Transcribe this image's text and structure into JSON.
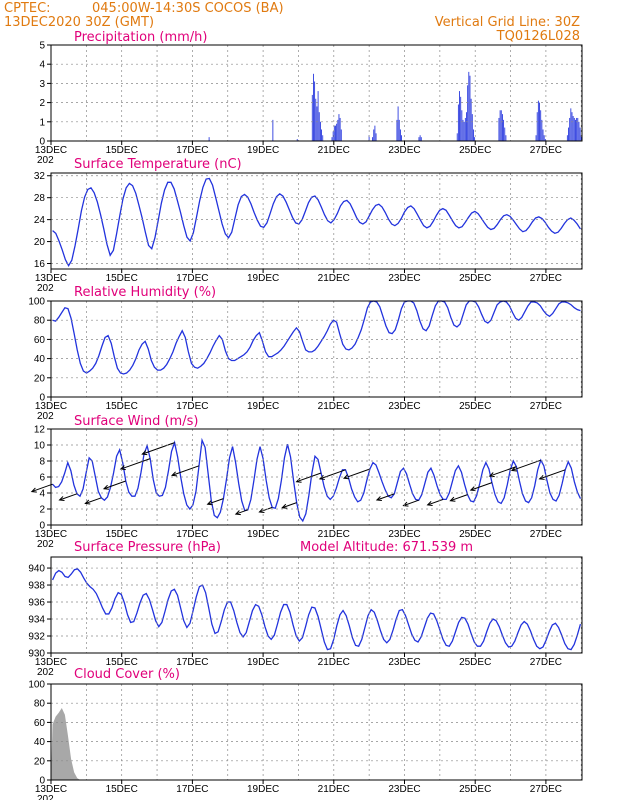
{
  "header": {
    "source": "CPTEC:",
    "location": "045:00W-14:30S   COCOS (BA)",
    "run": "13DEC2020 30Z (GMT)",
    "grid_note": "Vertical Grid Line: 30Z",
    "model_code": "TQ0126L028"
  },
  "x_axis": {
    "tick_labels": [
      "13DEC",
      "15DEC",
      "17DEC",
      "19DEC",
      "21DEC",
      "23DEC",
      "25DEC",
      "27DEC"
    ],
    "year_stub": "202"
  },
  "colors": {
    "series": "#2233dd",
    "cloud": "#a8a8a8",
    "header": "#e07a10",
    "titles": "#e0007a",
    "wind_arrow": "#000000"
  },
  "chart_data": [
    {
      "type": "bar",
      "title": "Precipitation (mm/h)",
      "ylim": [
        0,
        5
      ],
      "yticks": [
        "0",
        "1",
        "2",
        "3",
        "4",
        "5"
      ],
      "grid": true,
      "values": [
        0.0,
        0.0,
        0.0,
        0.0,
        0.0,
        0.0,
        0.0,
        0.0,
        0.0,
        0.0,
        0.0,
        0.0,
        0.0,
        0.0,
        0.0,
        0.0,
        0.0,
        0.0,
        0.0,
        0.0,
        0.0,
        0.0,
        0.0,
        0.0,
        0.0,
        0.0,
        0.0,
        0.0,
        0.0,
        0.0,
        0.0,
        0.0,
        0.0,
        0.0,
        0.0,
        0.0,
        0.0,
        0.0,
        0.0,
        0.0,
        0.0,
        0.0,
        0.0,
        0.0,
        0.0,
        0.0,
        0.0,
        0.0,
        0.0,
        0.0,
        0.0,
        0.0,
        0.0,
        0.0,
        0.0,
        0.0,
        0.0,
        0.0,
        0.0,
        0.0,
        0.0,
        0.0,
        0.0,
        0.0,
        0.0,
        0.0,
        0.0,
        0.0,
        0.0,
        0.0,
        0.0,
        0.0,
        0.0,
        0.0,
        0.0,
        0.0,
        0.0,
        0.0,
        0.0,
        0.0,
        0.0,
        0.0,
        0.0,
        0.0,
        0.0,
        0.0,
        0.0,
        0.0,
        0.0,
        0.0,
        0.0,
        0.0,
        0.0,
        0.0,
        0.0,
        0.0,
        0.0,
        0.0,
        0.0,
        0.0,
        0.0,
        0.0,
        0.0,
        0.0,
        0.0,
        0.0,
        0.0,
        0.0,
        0.0,
        0.0,
        0.0,
        0.0,
        0.0,
        0.0,
        0.0,
        0.0,
        0.0,
        0.0,
        0.0,
        0.0,
        0.0,
        0.0,
        0.0,
        0.0,
        0.0,
        0.0,
        0.0,
        0.0,
        0.0,
        0.0,
        0.0,
        0.0,
        0.0,
        0.0,
        0.0,
        0.0,
        0.2,
        0.0,
        0.0,
        0.0,
        0.0,
        0.0,
        0.0,
        0.0,
        0.0,
        0.0,
        0.0,
        0.0,
        0.0,
        0.0,
        0.0,
        0.0,
        0.0,
        0.0,
        0.0,
        0.0,
        0.0,
        0.0,
        0.0,
        0.0,
        0.0,
        0.0,
        0.0,
        0.0,
        0.0,
        0.0,
        0.0,
        0.0,
        0.0,
        0.0,
        0.0,
        0.0,
        0.0,
        0.0,
        0.0,
        0.0,
        0.0,
        0.0,
        0.0,
        0.0,
        0.0,
        0.0,
        0.0,
        0.0,
        0.0,
        0.0,
        0.0,
        0.0,
        0.0,
        0.0,
        0.0,
        1.1,
        0.0,
        0.0,
        0.0,
        0.0,
        0.0,
        0.0,
        0.0,
        0.0,
        0.0,
        0.0,
        0.0,
        0.0,
        0.0,
        0.0,
        0.0,
        0.0,
        0.0,
        0.0,
        0.0,
        0.0,
        0.1,
        0.0,
        0.0,
        0.0,
        0.0,
        0.0,
        0.0,
        0.0,
        0.0,
        0.0,
        0.0,
        0.0,
        0.0,
        2.4,
        3.5,
        3.1,
        2.2,
        1.8,
        2.6,
        1.5,
        1.0,
        0.6,
        0.3,
        0.0,
        0.0,
        0.0,
        0.0,
        0.0,
        0.0,
        0.0,
        0.2,
        0.5,
        0.8,
        0.8,
        0.9,
        1.1,
        1.4,
        1.2,
        0.6,
        0.0,
        0.0,
        0.0,
        0.0,
        0.0,
        0.0,
        0.0,
        0.0,
        0.0,
        0.0,
        0.0,
        0.0,
        0.0,
        0.0,
        0.0,
        0.0,
        0.0,
        0.0,
        0.0,
        0.0,
        0.0,
        0.0,
        0.0,
        0.3,
        0.0,
        0.0,
        0.2,
        0.6,
        0.8,
        0.4,
        0.0,
        0.0,
        0.0,
        0.0,
        0.0,
        0.0,
        0.0,
        0.0,
        0.0,
        0.0,
        0.0,
        0.0,
        0.0,
        0.0,
        0.0,
        0.0,
        0.0,
        1.1,
        1.8,
        1.1,
        0.6,
        0.3,
        0.0,
        0.0,
        0.0,
        0.0,
        0.0,
        0.0,
        0.0,
        0.0,
        0.0,
        0.0,
        0.0,
        0.0,
        0.0,
        0.0,
        0.2,
        0.3,
        0.2,
        0.0,
        0.0,
        0.0,
        0.0,
        0.0,
        0.0,
        0.0,
        0.0,
        0.0,
        0.0,
        0.0,
        0.0,
        0.0,
        0.0,
        0.0,
        0.0,
        0.0,
        0.0,
        0.0,
        0.0,
        0.0,
        0.0,
        0.0,
        0.0,
        0.0,
        0.0,
        0.0,
        0.0,
        0.0,
        0.0,
        0.4,
        1.9,
        2.6,
        2.3,
        1.6,
        1.1,
        1.0,
        1.2,
        1.5,
        2.9,
        3.6,
        3.4,
        2.2,
        1.4,
        0.6,
        0.2,
        0.0,
        0.0,
        0.0,
        0.0,
        0.0,
        0.0,
        0.0,
        0.0,
        0.0,
        0.0,
        0.0,
        0.0,
        0.0,
        0.0,
        0.0,
        0.0,
        0.0,
        0.0,
        0.0,
        0.0,
        1.2,
        1.6,
        1.6,
        1.4,
        1.1,
        0.7,
        0.3,
        0.0,
        0.0,
        0.0,
        0.0,
        0.0,
        0.0,
        0.0,
        0.0,
        0.0,
        0.0,
        0.0,
        0.0,
        0.0,
        0.0,
        0.0,
        0.0,
        0.0,
        0.0,
        0.0,
        0.0,
        0.0,
        0.0,
        0.0,
        0.0,
        0.0,
        0.3,
        1.5,
        2.1,
        2.0,
        1.6,
        1.1,
        0.6,
        0.3,
        0.1,
        0.0,
        0.0,
        0.0,
        0.0,
        0.0,
        0.0,
        0.0,
        0.0,
        0.0,
        0.0,
        0.0,
        0.0,
        0.0,
        0.0,
        0.0,
        0.0,
        0.0,
        0.0,
        0.3,
        0.7,
        1.2,
        1.7,
        1.5,
        1.3,
        1.2,
        1.1,
        1.2,
        1.2,
        1.0,
        0.7,
        0.3
      ]
    },
    {
      "type": "line",
      "title": "Surface Temperature (nC)",
      "ylim": [
        15,
        32.5
      ],
      "yticks": [
        "16",
        "20",
        "24",
        "28",
        "32"
      ],
      "grid": true,
      "values": [
        22.0,
        21.5,
        20.1,
        18.5,
        16.7,
        15.6,
        16.6,
        19.2,
        22.3,
        25.6,
        28.1,
        29.5,
        29.8,
        28.9,
        27.2,
        24.9,
        22.3,
        19.5,
        17.5,
        18.4,
        21.4,
        24.7,
        27.8,
        29.8,
        30.6,
        30.2,
        28.8,
        26.6,
        24.3,
        21.7,
        19.3,
        18.7,
        20.7,
        23.8,
        27.0,
        29.4,
        30.8,
        30.8,
        29.6,
        27.5,
        25.3,
        22.9,
        20.8,
        20.1,
        21.6,
        24.5,
        27.5,
        29.9,
        31.4,
        31.5,
        30.3,
        28.0,
        25.6,
        23.2,
        21.4,
        20.7,
        21.7,
        24.2,
        26.7,
        28.2,
        28.6,
        28.1,
        26.9,
        25.3,
        23.9,
        22.8,
        22.6,
        23.4,
        25.1,
        26.9,
        28.2,
        28.7,
        28.3,
        27.2,
        25.8,
        24.4,
        23.4,
        23.2,
        24.0,
        25.5,
        27.1,
        28.1,
        28.3,
        27.6,
        26.3,
        24.9,
        23.8,
        23.4,
        24.0,
        25.1,
        26.5,
        27.3,
        27.5,
        26.9,
        25.7,
        24.4,
        23.5,
        23.2,
        23.6,
        24.7,
        25.8,
        26.6,
        26.8,
        26.3,
        25.3,
        24.1,
        23.2,
        22.9,
        23.3,
        24.2,
        25.4,
        26.2,
        26.5,
        26.0,
        25.0,
        23.9,
        22.9,
        22.5,
        22.8,
        23.7,
        24.8,
        25.7,
        26.0,
        25.7,
        24.8,
        23.8,
        22.9,
        22.5,
        22.7,
        23.5,
        24.4,
        25.2,
        25.5,
        25.1,
        24.3,
        23.4,
        22.6,
        22.2,
        22.4,
        23.1,
        24.0,
        24.7,
        24.9,
        24.6,
        23.9,
        23.1,
        22.3,
        21.8,
        22.0,
        22.7,
        23.6,
        24.3,
        24.5,
        24.2,
        23.5,
        22.6,
        21.9,
        21.5,
        21.7,
        22.4,
        23.3,
        24.0,
        24.3,
        23.9,
        23.2,
        22.3
      ]
    },
    {
      "type": "line",
      "title": "Relative Humidity (%)",
      "ylim": [
        0,
        100
      ],
      "yticks": [
        "0",
        "20",
        "40",
        "60",
        "80",
        "100"
      ],
      "grid": true,
      "values": [
        80,
        79,
        83,
        88,
        93,
        92,
        82,
        66,
        49,
        35,
        27,
        25,
        27,
        30,
        35,
        43,
        53,
        62,
        64,
        56,
        42,
        30,
        25,
        24,
        25,
        28,
        33,
        40,
        49,
        55,
        58,
        50,
        38,
        31,
        28,
        28,
        30,
        34,
        40,
        47,
        56,
        63,
        69,
        62,
        47,
        35,
        31,
        30,
        32,
        35,
        40,
        46,
        53,
        59,
        64,
        60,
        48,
        40,
        38,
        38,
        40,
        42,
        44,
        47,
        52,
        59,
        64,
        67,
        58,
        47,
        42,
        42,
        44,
        46,
        49,
        53,
        58,
        63,
        68,
        72,
        68,
        58,
        49,
        47,
        47,
        49,
        53,
        58,
        63,
        69,
        76,
        80,
        78,
        66,
        55,
        50,
        49,
        51,
        55,
        62,
        70,
        81,
        93,
        99,
        100,
        99,
        94,
        84,
        74,
        67,
        66,
        70,
        80,
        92,
        99,
        100,
        100,
        98,
        90,
        79,
        71,
        69,
        74,
        85,
        95,
        100,
        100,
        99,
        93,
        83,
        75,
        73,
        76,
        86,
        96,
        100,
        100,
        99,
        94,
        86,
        79,
        77,
        80,
        88,
        96,
        99,
        100,
        99,
        95,
        88,
        82,
        80,
        83,
        89,
        95,
        99,
        99,
        98,
        95,
        90,
        86,
        84,
        87,
        92,
        97,
        99,
        99,
        98,
        96,
        93,
        91,
        90
      ]
    },
    {
      "type": "line",
      "title": "Surface Wind (m/s)",
      "ylim": [
        0,
        12
      ],
      "yticks": [
        "0",
        "2",
        "4",
        "6",
        "8",
        "10",
        "12"
      ],
      "grid": true,
      "values": [
        5.1,
        4.7,
        4.8,
        5.4,
        6.5,
        7.8,
        6.8,
        5.0,
        3.9,
        3.6,
        4.5,
        6.5,
        8.4,
        8.0,
        6.1,
        4.2,
        3.4,
        3.1,
        3.5,
        4.7,
        6.5,
        8.6,
        9.4,
        7.8,
        5.5,
        4.1,
        3.6,
        3.6,
        4.6,
        6.6,
        8.9,
        9.9,
        8.3,
        5.7,
        4.0,
        3.6,
        3.7,
        4.7,
        6.8,
        9.2,
        10.3,
        8.5,
        6.0,
        3.9,
        2.5,
        2.0,
        2.5,
        4.2,
        7.4,
        10.6,
        9.7,
        6.4,
        3.1,
        1.2,
        0.9,
        1.6,
        3.3,
        5.7,
        8.4,
        9.8,
        7.8,
        5.2,
        3.0,
        1.8,
        1.9,
        3.2,
        5.6,
        8.2,
        9.8,
        8.3,
        5.6,
        3.4,
        2.2,
        2.1,
        3.3,
        5.6,
        8.4,
        10.1,
        8.5,
        5.5,
        2.8,
        1.0,
        0.5,
        1.4,
        3.7,
        6.5,
        8.6,
        8.2,
        6.5,
        4.8,
        3.6,
        3.2,
        3.6,
        4.6,
        5.9,
        6.9,
        6.9,
        5.9,
        4.5,
        3.5,
        2.9,
        3.1,
        4.0,
        5.6,
        7.0,
        7.8,
        7.5,
        6.5,
        5.4,
        4.4,
        3.6,
        3.4,
        3.9,
        5.3,
        6.7,
        7.1,
        6.4,
        5.1,
        3.9,
        3.2,
        3.1,
        3.8,
        5.2,
        6.6,
        7.1,
        6.2,
        4.9,
        3.8,
        3.2,
        3.2,
        4.0,
        5.4,
        6.8,
        7.4,
        6.6,
        5.1,
        3.8,
        3.0,
        2.9,
        3.7,
        5.2,
        6.9,
        7.8,
        7.0,
        5.3,
        3.8,
        2.9,
        2.7,
        3.4,
        5.0,
        6.9,
        8.0,
        7.3,
        5.5,
        3.9,
        3.0,
        2.8,
        3.4,
        4.9,
        6.9,
        8.1,
        7.4,
        5.6,
        4.0,
        3.2,
        3.0,
        3.7,
        5.2,
        6.9,
        7.9,
        7.1,
        5.4,
        4.1,
        3.3
      ]
    },
    {
      "type": "line",
      "title": "Surface Pressure (hPa)",
      "ylim": [
        930,
        941.3
      ],
      "yticks": [
        "930",
        "932",
        "934",
        "936",
        "938",
        "940"
      ],
      "grid": true,
      "values": [
        938.6,
        939.4,
        939.7,
        939.5,
        939.0,
        938.9,
        939.3,
        939.8,
        939.9,
        939.5,
        938.8,
        938.2,
        937.8,
        937.5,
        937.0,
        936.2,
        935.3,
        934.6,
        934.6,
        935.3,
        936.4,
        937.1,
        936.9,
        935.9,
        934.5,
        933.6,
        933.7,
        934.7,
        935.9,
        936.8,
        937.0,
        936.3,
        935.1,
        933.8,
        933.1,
        933.6,
        934.9,
        936.3,
        937.3,
        937.5,
        936.8,
        935.3,
        933.8,
        933.0,
        933.5,
        935.0,
        936.6,
        937.8,
        938.0,
        937.1,
        935.3,
        933.4,
        932.3,
        932.5,
        933.7,
        935.1,
        936.0,
        936.0,
        935.0,
        933.6,
        932.4,
        931.9,
        932.4,
        933.7,
        935.0,
        935.7,
        935.5,
        934.5,
        933.1,
        932.0,
        931.6,
        932.1,
        933.4,
        934.8,
        935.7,
        935.7,
        934.8,
        933.3,
        932.0,
        931.4,
        931.8,
        933.1,
        934.5,
        935.4,
        935.3,
        934.3,
        932.8,
        931.3,
        930.4,
        930.5,
        931.6,
        933.2,
        934.5,
        935.0,
        934.4,
        933.2,
        931.8,
        930.9,
        930.8,
        931.6,
        933.0,
        934.4,
        935.1,
        934.8,
        933.8,
        932.6,
        931.6,
        931.2,
        931.6,
        932.7,
        934.0,
        935.0,
        935.1,
        934.4,
        933.3,
        932.2,
        931.5,
        931.3,
        931.9,
        933.0,
        934.1,
        934.7,
        934.6,
        933.8,
        932.7,
        931.6,
        930.9,
        930.8,
        931.4,
        932.5,
        933.6,
        934.2,
        934.1,
        933.4,
        932.3,
        931.3,
        930.8,
        930.8,
        931.4,
        932.5,
        933.5,
        934.0,
        933.8,
        933.1,
        932.1,
        931.2,
        930.7,
        930.8,
        931.4,
        932.4,
        933.3,
        933.7,
        933.4,
        932.6,
        931.6,
        930.8,
        930.5,
        930.7,
        931.5,
        932.5,
        933.3,
        933.5,
        933.0,
        932.1,
        931.1,
        930.5,
        930.4,
        931.0,
        932.1,
        933.4
      ]
    },
    {
      "type": "area",
      "title": "Cloud Cover (%)",
      "ylim": [
        0,
        100
      ],
      "yticks": [
        "0",
        "20",
        "40",
        "60",
        "80",
        "100"
      ],
      "grid": true,
      "values": [
        58,
        66,
        70,
        75,
        68,
        46,
        22,
        8,
        2,
        0,
        0,
        0,
        0,
        0,
        0,
        0,
        0,
        0,
        0,
        0,
        0,
        0,
        0,
        0,
        0,
        0,
        0,
        0,
        0,
        0,
        0,
        0,
        0,
        0,
        0,
        0,
        0,
        0,
        0,
        0,
        0,
        0,
        0,
        0,
        0,
        0,
        0,
        0,
        0,
        0,
        0,
        0,
        0,
        0,
        0,
        0,
        0,
        0,
        0,
        0,
        0,
        0,
        0,
        0,
        0,
        0,
        0,
        0,
        0,
        0,
        0,
        0,
        0,
        0,
        0,
        0,
        0,
        0,
        0,
        0,
        0,
        0,
        0,
        0,
        0,
        0,
        0,
        0,
        0,
        0,
        0,
        0,
        0,
        0,
        0,
        0,
        0,
        0,
        0,
        0,
        0,
        0,
        0,
        0,
        0,
        0,
        0,
        0,
        0,
        0,
        0,
        0,
        0,
        0,
        0,
        0,
        0,
        0,
        0,
        0,
        0,
        0,
        0,
        0,
        0,
        0,
        0,
        0,
        0,
        0,
        0,
        0,
        0,
        0,
        0,
        0,
        0,
        0,
        0,
        0,
        0,
        0,
        0,
        0,
        0,
        0,
        0,
        0,
        0,
        0,
        0,
        0,
        0,
        0,
        0,
        0,
        0,
        0,
        0,
        0,
        0,
        0,
        0,
        0,
        0,
        0,
        0,
        0,
        0,
        0,
        0,
        0
      ]
    }
  ],
  "pressure_note": "Model Altitude: 671.539  m"
}
